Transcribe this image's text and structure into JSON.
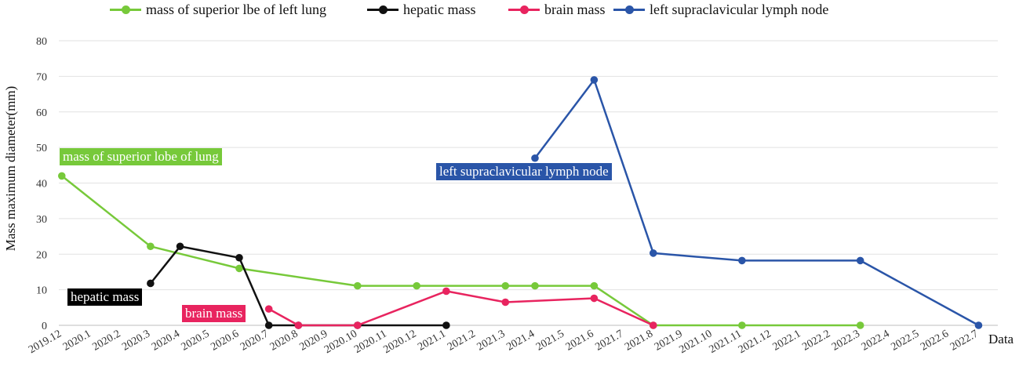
{
  "chart_data": {
    "type": "line",
    "xlabel": "Data",
    "ylabel": "Mass maximum diameter(mm)",
    "ylim": [
      0,
      80
    ],
    "yticks": [
      0,
      10,
      20,
      30,
      40,
      50,
      60,
      70,
      80
    ],
    "grid": "horizontal",
    "legend_position": "top",
    "categories": [
      "2019.12",
      "2020.1",
      "2020.2",
      "2020.3",
      "2020.4",
      "2020.5",
      "2020.6",
      "2020.7",
      "2020.8",
      "2020.9",
      "2020.10",
      "2020.11",
      "2020.12",
      "2021.1",
      "2021.2",
      "2021.3",
      "2021.4",
      "2021.5",
      "2021.6",
      "2021.7",
      "2021.8",
      "2021.9",
      "2021.10",
      "2021.11",
      "2021.12",
      "2022.1",
      "2022.2",
      "2022.3",
      "2022.4",
      "2022.5",
      "2022.6",
      "2022.7"
    ],
    "series": [
      {
        "name": "mass of superior lbe of left lung",
        "color": "#77c93a",
        "points": [
          [
            0.1,
            42
          ],
          [
            3.1,
            22.2
          ],
          [
            6.1,
            16
          ],
          [
            10.1,
            11.1
          ],
          [
            12.1,
            11.1
          ],
          [
            15.1,
            11.1
          ],
          [
            16.1,
            11.1
          ],
          [
            18.1,
            11.1
          ],
          [
            20.1,
            0
          ],
          [
            23.1,
            0
          ],
          [
            27.1,
            0
          ]
        ]
      },
      {
        "name": "hepatic mass",
        "color": "#111111",
        "points": [
          [
            3.1,
            11.8
          ],
          [
            4.1,
            22.2
          ],
          [
            6.1,
            19
          ],
          [
            7.1,
            0
          ],
          [
            8.1,
            0
          ],
          [
            10.1,
            0
          ],
          [
            13.1,
            0
          ]
        ]
      },
      {
        "name": "brain mass",
        "color": "#e8245f",
        "points": [
          [
            7.1,
            4.6
          ],
          [
            8.1,
            0
          ],
          [
            10.1,
            0
          ],
          [
            13.1,
            9.6
          ],
          [
            15.1,
            6.5
          ],
          [
            18.1,
            7.6
          ],
          [
            20.1,
            0
          ]
        ]
      },
      {
        "name": "left supraclavicular lymph node",
        "color": "#2a55a8",
        "points": [
          [
            16.1,
            47
          ],
          [
            18.1,
            69
          ],
          [
            20.1,
            20.3
          ],
          [
            23.1,
            18.2
          ],
          [
            27.1,
            18.2
          ],
          [
            31.1,
            0
          ]
        ]
      }
    ],
    "annotations": [
      {
        "text": "mass of superior lobe of lung",
        "color": "#77c93a"
      },
      {
        "text": "left supraclavicular lymph node",
        "color": "#2a55a8"
      },
      {
        "text": "hepatic mass",
        "color": "#000000"
      },
      {
        "text": "brain mass",
        "color": "#e8245f"
      }
    ]
  }
}
